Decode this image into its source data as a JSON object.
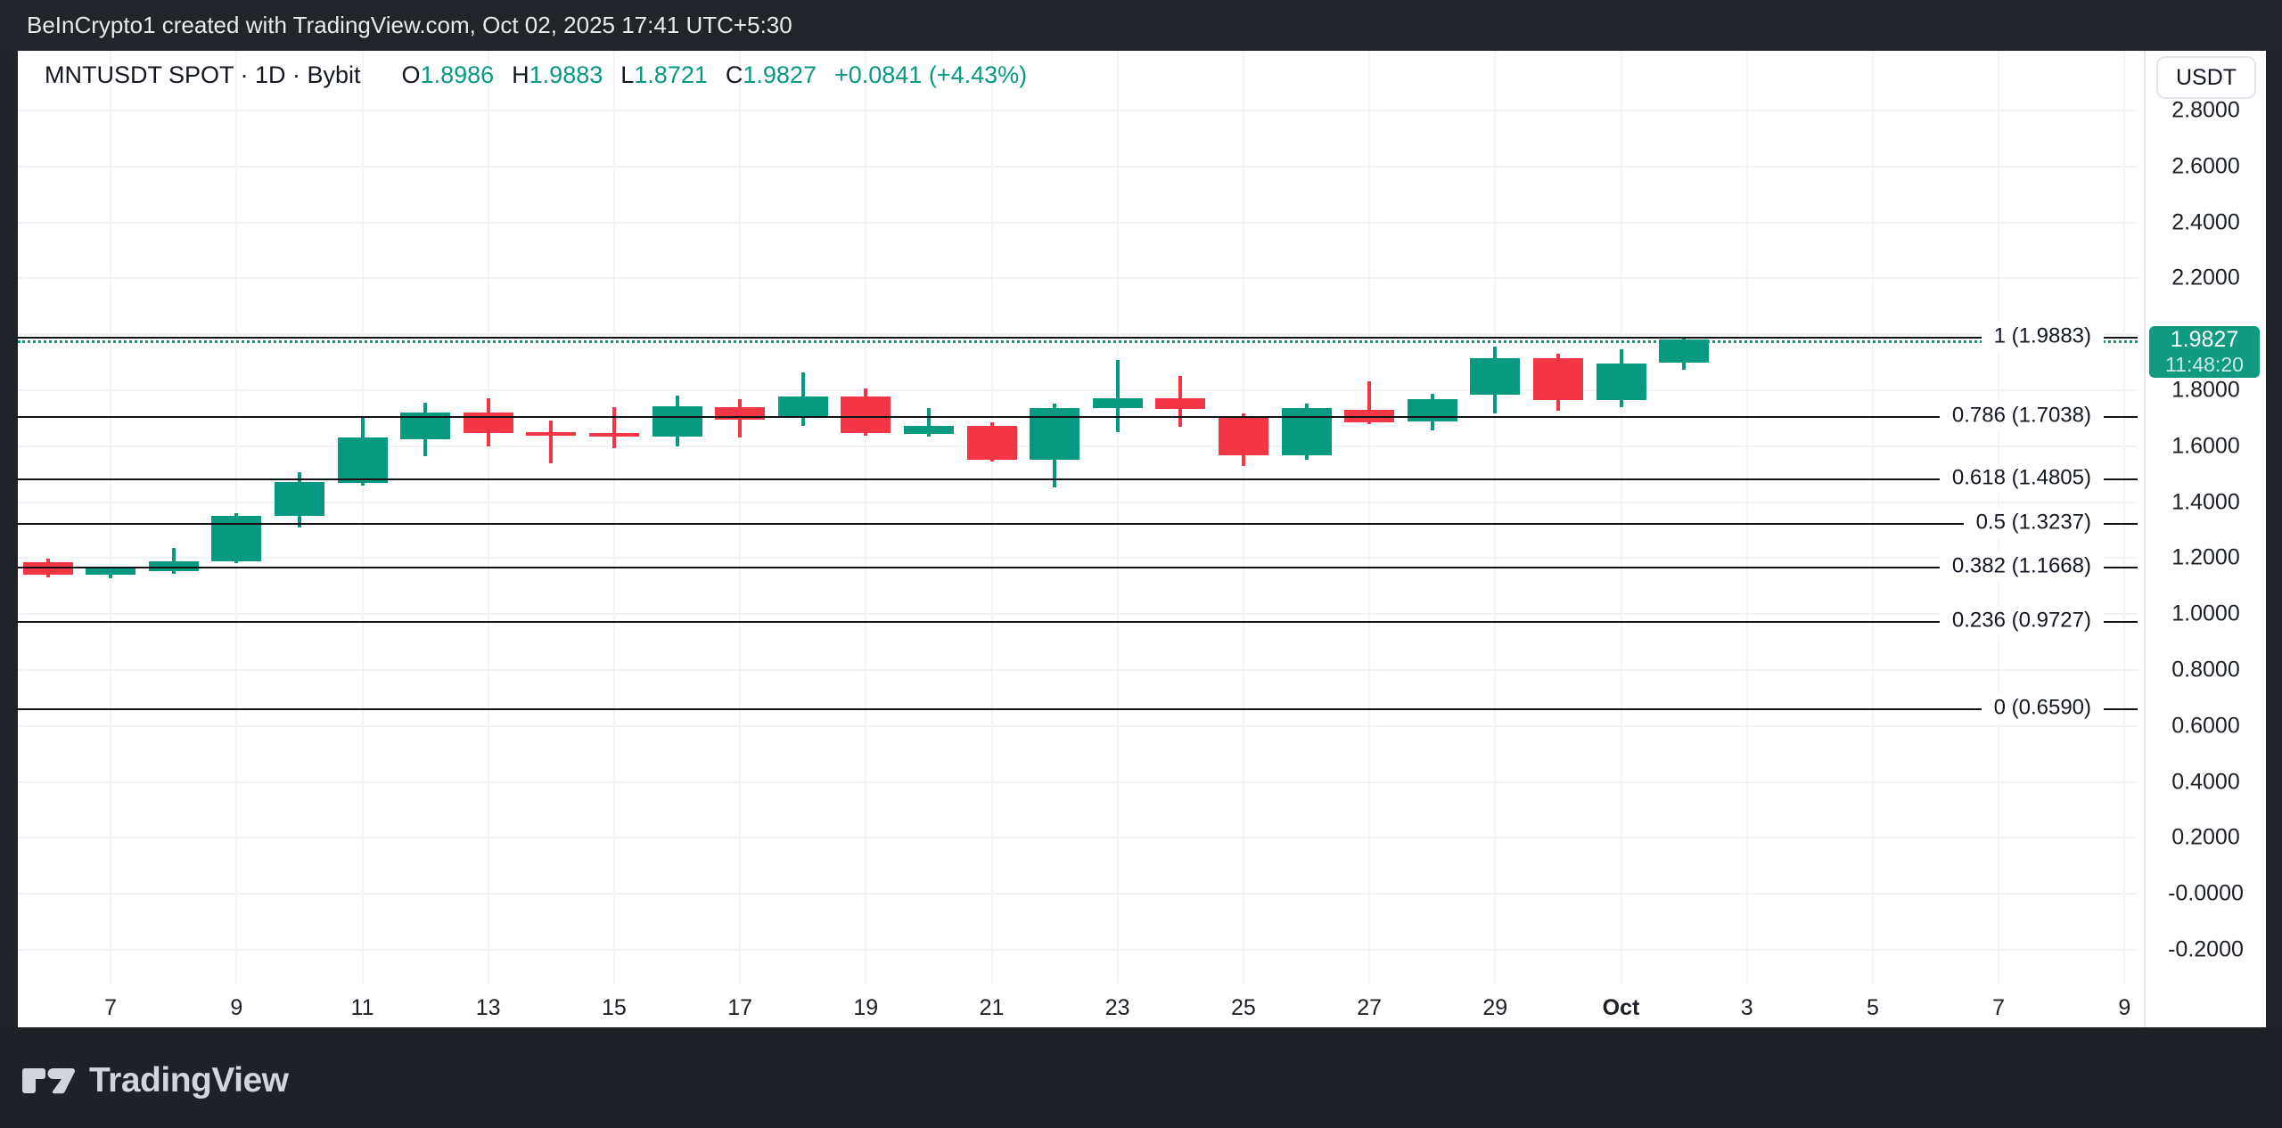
{
  "top_bar": {
    "text": "BeInCrypto1 created with TradingView.com, Oct 02, 2025 17:41 UTC+5:30"
  },
  "header": {
    "title": "MNTUSDT SPOT · 1D · Bybit",
    "o_label": "O",
    "o_value": "1.8986",
    "h_label": "H",
    "h_value": "1.9883",
    "l_label": "L",
    "l_value": "1.8721",
    "c_label": "C",
    "c_value": "1.9827",
    "change": "+0.0841 (+4.43%)"
  },
  "y_axis": {
    "currency": "USDT",
    "ticks": [
      {
        "label": "2.8000",
        "value": 2.8
      },
      {
        "label": "2.6000",
        "value": 2.6
      },
      {
        "label": "2.4000",
        "value": 2.4
      },
      {
        "label": "2.2000",
        "value": 2.2
      },
      {
        "label": "1.8000",
        "value": 1.8
      },
      {
        "label": "1.6000",
        "value": 1.6
      },
      {
        "label": "1.4000",
        "value": 1.4
      },
      {
        "label": "1.2000",
        "value": 1.2
      },
      {
        "label": "1.0000",
        "value": 1.0
      },
      {
        "label": "0.8000",
        "value": 0.8
      },
      {
        "label": "0.6000",
        "value": 0.6
      },
      {
        "label": "0.4000",
        "value": 0.4
      },
      {
        "label": "0.2000",
        "value": 0.2
      },
      {
        "label": "-0.0000",
        "value": 0.0
      },
      {
        "label": "-0.2000",
        "value": -0.2
      }
    ]
  },
  "price_badge": {
    "price": "1.9827",
    "countdown": "11:48:20",
    "value": 1.9827
  },
  "footer": {
    "brand": "TradingView"
  },
  "chart_data": {
    "type": "candlestick",
    "title": "MNTUSDT SPOT · 1D · Bybit",
    "ylabel": "USDT",
    "ylim": [
      -0.2,
      2.8
    ],
    "grid": true,
    "colors": {
      "up": "#089981",
      "down": "#f23645"
    },
    "last_ohlc": {
      "open": 1.8986,
      "high": 1.9883,
      "low": 1.8721,
      "close": 1.9827,
      "change": "+0.0841",
      "change_pct": "+4.43%"
    },
    "current_price_line": {
      "value": 1.9827,
      "color": "#089981",
      "style": "dotted"
    },
    "fib_levels": [
      {
        "label": "1 (1.9883)",
        "level": 1,
        "value": 1.9883,
        "style": "solid"
      },
      {
        "label": "0.786 (1.7038)",
        "level": 0.786,
        "value": 1.7038,
        "style": "solid"
      },
      {
        "label": "0.618 (1.4805)",
        "level": 0.618,
        "value": 1.4805,
        "style": "solid"
      },
      {
        "label": "0.5 (1.3237)",
        "level": 0.5,
        "value": 1.3237,
        "style": "solid"
      },
      {
        "label": "0.382 (1.1668)",
        "level": 0.382,
        "value": 1.1668,
        "style": "solid"
      },
      {
        "label": "0.236 (0.9727)",
        "level": 0.236,
        "value": 0.9727,
        "style": "solid"
      },
      {
        "label": "0 (0.6590)",
        "level": 0,
        "value": 0.659,
        "style": "solid"
      }
    ],
    "x_ticks": [
      {
        "label": "7",
        "index": 1
      },
      {
        "label": "9",
        "index": 3
      },
      {
        "label": "11",
        "index": 5
      },
      {
        "label": "13",
        "index": 7
      },
      {
        "label": "15",
        "index": 9
      },
      {
        "label": "17",
        "index": 11
      },
      {
        "label": "19",
        "index": 13
      },
      {
        "label": "21",
        "index": 15
      },
      {
        "label": "23",
        "index": 17
      },
      {
        "label": "25",
        "index": 19
      },
      {
        "label": "27",
        "index": 21
      },
      {
        "label": "29",
        "index": 23
      },
      {
        "label": "Oct",
        "index": 25,
        "bold": true
      },
      {
        "label": "3",
        "index": 27
      },
      {
        "label": "5",
        "index": 29
      },
      {
        "label": "7",
        "index": 31
      },
      {
        "label": "9",
        "index": 33
      }
    ],
    "candles": [
      {
        "date": "Sep 6",
        "o": 1.185,
        "h": 1.197,
        "l": 1.13,
        "c": 1.142
      },
      {
        "date": "Sep 7",
        "o": 1.14,
        "h": 1.17,
        "l": 1.128,
        "c": 1.162
      },
      {
        "date": "Sep 8",
        "o": 1.152,
        "h": 1.235,
        "l": 1.145,
        "c": 1.19
      },
      {
        "date": "Sep 9",
        "o": 1.19,
        "h": 1.362,
        "l": 1.182,
        "c": 1.35
      },
      {
        "date": "Sep 10",
        "o": 1.35,
        "h": 1.507,
        "l": 1.31,
        "c": 1.472
      },
      {
        "date": "Sep 11",
        "o": 1.468,
        "h": 1.703,
        "l": 1.458,
        "c": 1.63
      },
      {
        "date": "Sep 12",
        "o": 1.625,
        "h": 1.757,
        "l": 1.565,
        "c": 1.72
      },
      {
        "date": "Sep 13",
        "o": 1.72,
        "h": 1.772,
        "l": 1.6,
        "c": 1.648
      },
      {
        "date": "Sep 14",
        "o": 1.65,
        "h": 1.692,
        "l": 1.538,
        "c": 1.638
      },
      {
        "date": "Sep 15",
        "o": 1.646,
        "h": 1.74,
        "l": 1.592,
        "c": 1.634
      },
      {
        "date": "Sep 16",
        "o": 1.634,
        "h": 1.78,
        "l": 1.598,
        "c": 1.742
      },
      {
        "date": "Sep 17",
        "o": 1.74,
        "h": 1.768,
        "l": 1.63,
        "c": 1.696
      },
      {
        "date": "Sep 18",
        "o": 1.7,
        "h": 1.864,
        "l": 1.672,
        "c": 1.778
      },
      {
        "date": "Sep 19",
        "o": 1.778,
        "h": 1.806,
        "l": 1.638,
        "c": 1.648
      },
      {
        "date": "Sep 20",
        "o": 1.644,
        "h": 1.737,
        "l": 1.634,
        "c": 1.672
      },
      {
        "date": "Sep 21",
        "o": 1.672,
        "h": 1.684,
        "l": 1.546,
        "c": 1.552
      },
      {
        "date": "Sep 22",
        "o": 1.552,
        "h": 1.752,
        "l": 1.453,
        "c": 1.736
      },
      {
        "date": "Sep 23",
        "o": 1.736,
        "h": 1.908,
        "l": 1.65,
        "c": 1.77
      },
      {
        "date": "Sep 24",
        "o": 1.77,
        "h": 1.85,
        "l": 1.668,
        "c": 1.732
      },
      {
        "date": "Sep 25",
        "o": 1.705,
        "h": 1.716,
        "l": 1.53,
        "c": 1.568
      },
      {
        "date": "Sep 26",
        "o": 1.568,
        "h": 1.752,
        "l": 1.552,
        "c": 1.735
      },
      {
        "date": "Sep 27",
        "o": 1.73,
        "h": 1.832,
        "l": 1.678,
        "c": 1.686
      },
      {
        "date": "Sep 28",
        "o": 1.69,
        "h": 1.788,
        "l": 1.658,
        "c": 1.767
      },
      {
        "date": "Sep 29",
        "o": 1.784,
        "h": 1.956,
        "l": 1.718,
        "c": 1.915
      },
      {
        "date": "Sep 30",
        "o": 1.915,
        "h": 1.93,
        "l": 1.728,
        "c": 1.765
      },
      {
        "date": "Oct 1",
        "o": 1.765,
        "h": 1.946,
        "l": 1.738,
        "c": 1.896
      },
      {
        "date": "Oct 2",
        "o": 1.8986,
        "h": 1.9883,
        "l": 1.8721,
        "c": 1.9827
      }
    ]
  }
}
